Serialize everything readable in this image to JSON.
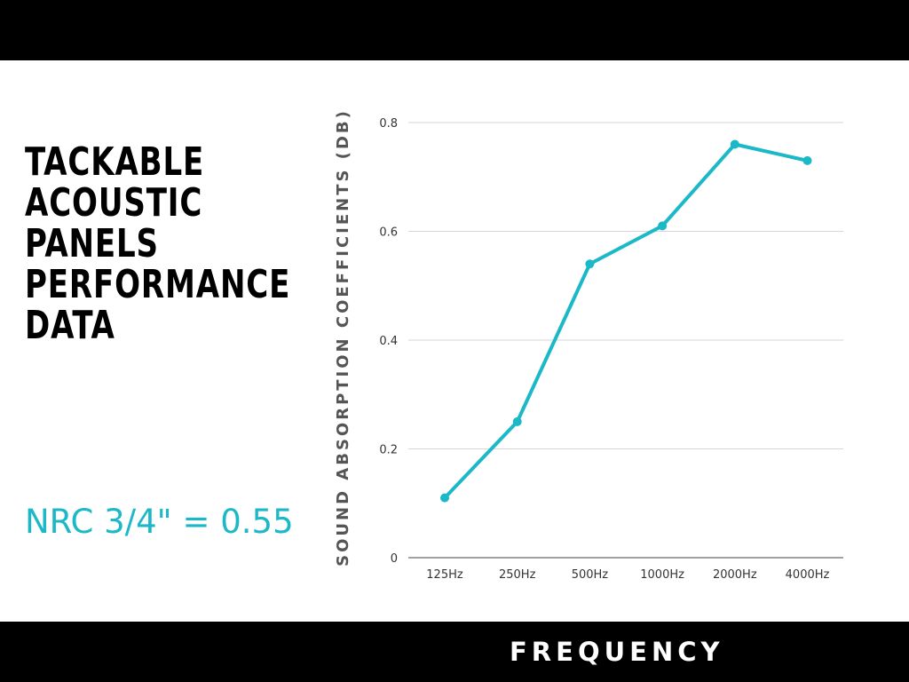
{
  "title_lines": [
    "TACKABLE",
    "ACOUSTIC",
    "PANELS",
    "PERFORMANCE",
    "DATA"
  ],
  "nrc_text": "NRC 3/4\" = 0.55",
  "colors": {
    "accent": "#1bb8c7",
    "bars": "#000000",
    "ylabel": "#555555",
    "gridline": "#d6d6d6"
  },
  "chart_data": {
    "type": "line",
    "title": "",
    "xlabel": "FREQUENCY",
    "ylabel": "SOUND ABSORPTION COEFFICIENTS (DB)",
    "categories": [
      "125Hz",
      "250Hz",
      "500Hz",
      "1000Hz",
      "2000Hz",
      "4000Hz"
    ],
    "series": [
      {
        "values": [
          0.11,
          0.25,
          0.54,
          0.61,
          0.76,
          0.73
        ]
      }
    ],
    "yticks": [
      0,
      0.2,
      0.4,
      0.6,
      0.8
    ],
    "ytick_labels": [
      "0",
      "0.2",
      "0.4",
      "0.6",
      "0.8"
    ],
    "ylim": [
      0,
      0.8
    ],
    "grid": true,
    "legend": "none"
  }
}
